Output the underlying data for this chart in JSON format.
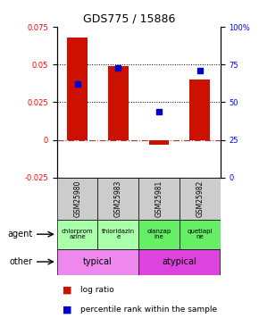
{
  "title": "GDS775 / 15886",
  "samples": [
    "GSM25980",
    "GSM25983",
    "GSM25981",
    "GSM25982"
  ],
  "log_ratio": [
    0.068,
    0.049,
    -0.003,
    0.04
  ],
  "percentile": [
    62,
    73,
    44,
    71
  ],
  "ylim_left": [
    -0.025,
    0.075
  ],
  "ylim_right": [
    0,
    100
  ],
  "yticks_left": [
    -0.025,
    0,
    0.025,
    0.05,
    0.075
  ],
  "yticks_right": [
    0,
    25,
    50,
    75,
    100
  ],
  "bar_color": "#cc1100",
  "dot_color": "#0000cc",
  "agent_labels": [
    "chlorprom\nazine",
    "thioridazin\ne",
    "olanzap\nine",
    "quetiapi\nne"
  ],
  "agent_color_typical": "#aaffaa",
  "agent_color_atypical": "#66ee66",
  "typical_color": "#ee88ee",
  "atypical_color": "#dd44dd",
  "sample_bg": "#cccccc"
}
